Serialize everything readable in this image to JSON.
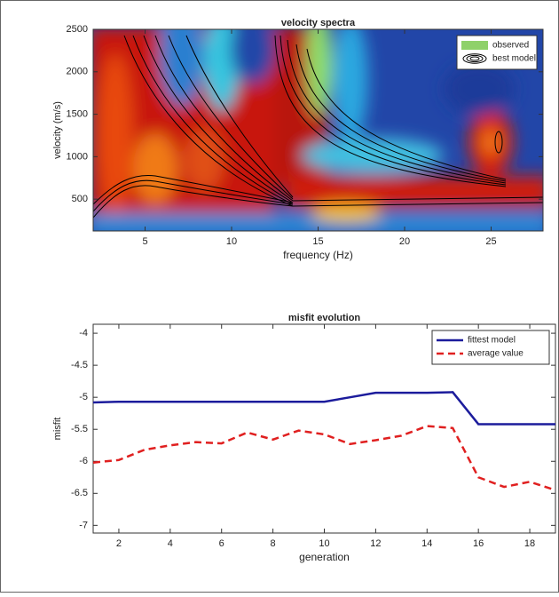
{
  "chart_data": [
    {
      "type": "heatmap",
      "title": "velocity spectra",
      "x_label": "frequency (Hz)",
      "y_label": "velocity (m/s)",
      "xlim": [
        2,
        28
      ],
      "ylim": [
        125,
        2500
      ],
      "xticks": [
        5,
        10,
        15,
        20,
        25
      ],
      "yticks": [
        500,
        1000,
        1500,
        2000,
        2500
      ],
      "series": [
        {
          "name": "observed",
          "color": "#8fd16a"
        },
        {
          "name": "best model",
          "color": "#000000"
        }
      ],
      "legend": "upper right"
    },
    {
      "type": "line",
      "title": "misfit evolution",
      "x_label": "generation",
      "y_label": "misfit",
      "x": [
        1,
        2,
        3,
        4,
        5,
        6,
        7,
        8,
        9,
        10,
        11,
        12,
        13,
        14,
        15,
        16,
        17,
        18,
        19
      ],
      "xlim": [
        1,
        19
      ],
      "ylim": [
        -7.12,
        -3.86
      ],
      "xticks": [
        2,
        4,
        6,
        8,
        10,
        12,
        14,
        16,
        18
      ],
      "yticks": [
        -4,
        -4.5,
        -5,
        -5.5,
        -6,
        -6.5,
        -7
      ],
      "legend": "upper right",
      "series": [
        {
          "name": "fittest model",
          "color": "#1c1c9c",
          "style": "solid",
          "values": [
            -5.08,
            -5.07,
            -5.07,
            -5.07,
            -5.07,
            -5.07,
            -5.07,
            -5.07,
            -5.07,
            -5.07,
            -5.0,
            -4.93,
            -4.93,
            -4.93,
            -4.92,
            -5.42,
            -5.42,
            -5.42,
            -5.42
          ]
        },
        {
          "name": "average value",
          "color": "#e02020",
          "style": "dashed",
          "values": [
            -6.02,
            -5.98,
            -5.82,
            -5.75,
            -5.7,
            -5.72,
            -5.55,
            -5.66,
            -5.52,
            -5.58,
            -5.73,
            -5.67,
            -5.6,
            -5.45,
            -5.48,
            -6.25,
            -6.4,
            -6.32,
            -6.45
          ]
        }
      ]
    }
  ]
}
